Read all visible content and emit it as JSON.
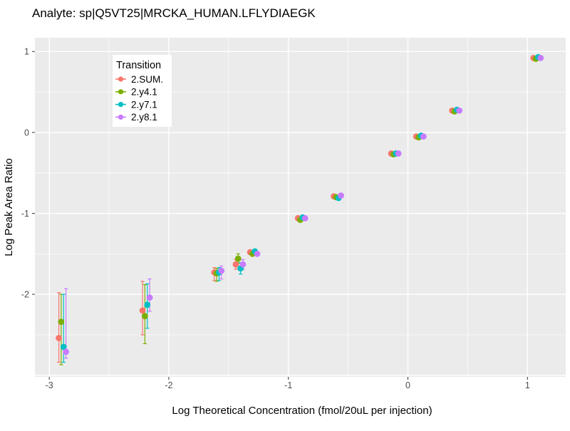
{
  "header": {
    "title": "Analyte: sp|Q5VT25|MRCKA_HUMAN.LFLYDIAEGK"
  },
  "chart_data": {
    "type": "scatter",
    "title": "Analyte: sp|Q5VT25|MRCKA_HUMAN.LFLYDIAEGK",
    "xlabel": "Log Theoretical Concentration (fmol/20uL per injection)",
    "ylabel": "Log Peak Area Ratio",
    "xlim": [
      -3.12,
      1.32
    ],
    "ylim": [
      -3.02,
      1.17
    ],
    "x_ticks": [
      -3,
      -2,
      -1,
      0,
      1
    ],
    "y_ticks": [
      1,
      0,
      -1,
      -2
    ],
    "x_grid_major": [
      -3,
      -2,
      -1,
      0,
      1
    ],
    "y_grid_major": [
      -3,
      -2,
      -1,
      0,
      1
    ],
    "x_grid_minor": [
      -2.5,
      -1.5,
      -0.5,
      0.5
    ],
    "y_grid_minor": [
      -2.5,
      -1.5,
      -0.5,
      0.5
    ],
    "grid": true,
    "panel_bg": "#EBEBEB",
    "grid_color": "#FFFFFF",
    "tick_color": "#333333",
    "tick_label_color": "#4D4D4D",
    "legend": {
      "title": "Transition",
      "position": "top-left-inside",
      "bg": "#FFFFFF"
    },
    "x": [
      -2.89,
      -2.19,
      -1.59,
      -1.41,
      -1.29,
      -0.89,
      -0.59,
      -0.11,
      0.1,
      0.4,
      1.08
    ],
    "series": [
      {
        "name": "2.SUM.",
        "color": "#F8766D",
        "y": [
          -2.54,
          -2.2,
          -1.73,
          -1.63,
          -1.48,
          -1.06,
          -0.79,
          -0.26,
          -0.05,
          0.27,
          0.92
        ],
        "ymin": [
          -2.84,
          -2.5,
          -1.83,
          -1.69,
          -1.48,
          -1.06,
          -0.79,
          -0.26,
          -0.05,
          0.27,
          0.92
        ],
        "ymax": [
          -1.98,
          -1.84,
          -1.67,
          -1.57,
          -1.48,
          -1.06,
          -0.79,
          -0.26,
          -0.05,
          0.27,
          0.92
        ]
      },
      {
        "name": "2.y4.1",
        "color": "#7CAE00",
        "y": [
          -2.34,
          -2.27,
          -1.74,
          -1.56,
          -1.5,
          -1.08,
          -0.8,
          -0.27,
          -0.06,
          0.26,
          0.91
        ],
        "ymin": [
          -2.87,
          -2.61,
          -1.84,
          -1.62,
          -1.5,
          -1.08,
          -0.8,
          -0.27,
          -0.06,
          0.26,
          0.91
        ],
        "ymax": [
          -2.0,
          -1.88,
          -1.68,
          -1.5,
          -1.5,
          -1.08,
          -0.8,
          -0.27,
          -0.06,
          0.26,
          0.91
        ]
      },
      {
        "name": "2.y7.1",
        "color": "#00BFC4",
        "y": [
          -2.65,
          -2.13,
          -1.73,
          -1.68,
          -1.47,
          -1.05,
          -0.81,
          -0.26,
          -0.04,
          0.28,
          0.93
        ],
        "ymin": [
          -2.84,
          -2.42,
          -1.83,
          -1.75,
          -1.47,
          -1.05,
          -0.81,
          -0.26,
          -0.04,
          0.28,
          0.93
        ],
        "ymax": [
          -2.0,
          -1.87,
          -1.67,
          -1.61,
          -1.47,
          -1.05,
          -0.81,
          -0.26,
          -0.04,
          0.28,
          0.93
        ]
      },
      {
        "name": "2.y8.1",
        "color": "#C77CFF",
        "y": [
          -2.71,
          -2.04,
          -1.71,
          -1.63,
          -1.5,
          -1.06,
          -0.78,
          -0.26,
          -0.05,
          0.27,
          0.92
        ],
        "ymin": [
          -2.79,
          -2.21,
          -1.81,
          -1.69,
          -1.5,
          -1.06,
          -0.78,
          -0.26,
          -0.05,
          0.27,
          0.92
        ],
        "ymax": [
          -1.93,
          -1.81,
          -1.65,
          -1.57,
          -1.5,
          -1.06,
          -0.78,
          -0.26,
          -0.05,
          0.27,
          0.92
        ]
      }
    ]
  }
}
